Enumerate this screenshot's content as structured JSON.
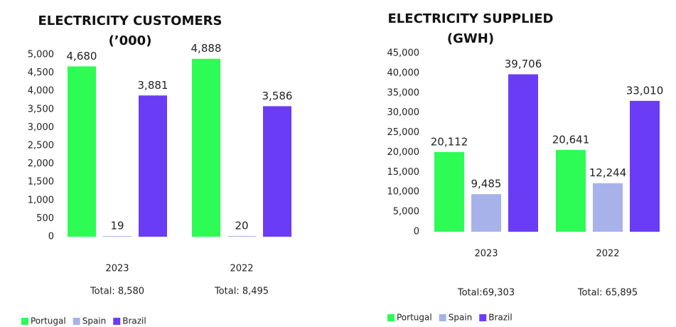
{
  "chart_data": [
    {
      "type": "bar",
      "title": "ELECTRICITY CUSTOMERS",
      "subtitle": "(’000)",
      "categories": [
        "2023",
        "2022"
      ],
      "totals": [
        "Total: 8,580",
        "Total: 8,495"
      ],
      "series": [
        {
          "name": "Portugal",
          "color": "#2dfc55",
          "values": [
            4680,
            4888
          ],
          "value_labels": [
            "4,680",
            "4,888"
          ]
        },
        {
          "name": "Spain",
          "color": "#a8b2ea",
          "values": [
            19,
            20
          ]
        },
        {
          "name": "Brazil",
          "color": "#6b3cf6",
          "values": [
            3881,
            3586
          ],
          "value_labels": [
            "3,881",
            "3,586"
          ]
        }
      ],
      "ylim": [
        0,
        5000
      ],
      "yticks": [
        0,
        500,
        {
          "value": 1000,
          "label": "1,000"
        },
        {
          "value": 1500,
          "label": "1,500"
        },
        {
          "value": 2000,
          "label": "2,000"
        },
        {
          "value": 2500,
          "label": "2,500"
        },
        {
          "value": 3000,
          "label": "3,000"
        },
        {
          "value": 3500,
          "label": "3,500"
        },
        {
          "value": 4000,
          "label": "4,000"
        },
        {
          "value": 4500,
          "label": "4,500"
        },
        {
          "value": 5000,
          "label": "5,000"
        }
      ]
    },
    {
      "type": "bar",
      "title": "ELECTRICITY SUPPLIED",
      "subtitle": "(GWH)",
      "categories": [
        "2023",
        "2022"
      ],
      "totals": [
        "Total:69,303",
        "Total: 65,895"
      ],
      "series": [
        {
          "name": "Portugal",
          "color": "#2dfc55",
          "values": [
            20112,
            20641
          ],
          "value_labels": [
            "20,112",
            "20,641"
          ]
        },
        {
          "name": "Spain",
          "color": "#a8b2ea",
          "values": [
            9485,
            12244
          ],
          "value_labels": [
            "9,485",
            "12,244"
          ]
        },
        {
          "name": "Brazil",
          "color": "#6b3cf6",
          "values": [
            39706,
            33010
          ],
          "value_labels": [
            "39,706",
            "33,010"
          ]
        }
      ],
      "ylim": [
        0,
        45000
      ],
      "yticks": [
        0,
        {
          "value": 5000,
          "label": "5,000"
        },
        {
          "value": 10000,
          "label": "10,000"
        },
        {
          "value": 15000,
          "label": "15,000"
        },
        {
          "value": 20000,
          "label": "20,000"
        },
        {
          "value": 25000,
          "label": "25,000"
        },
        {
          "value": 30000,
          "label": "30,000"
        },
        {
          "value": 35000,
          "label": "35,000"
        },
        {
          "value": 40000,
          "label": "40,000"
        },
        {
          "value": 45000,
          "label": "45,000"
        }
      ]
    }
  ]
}
